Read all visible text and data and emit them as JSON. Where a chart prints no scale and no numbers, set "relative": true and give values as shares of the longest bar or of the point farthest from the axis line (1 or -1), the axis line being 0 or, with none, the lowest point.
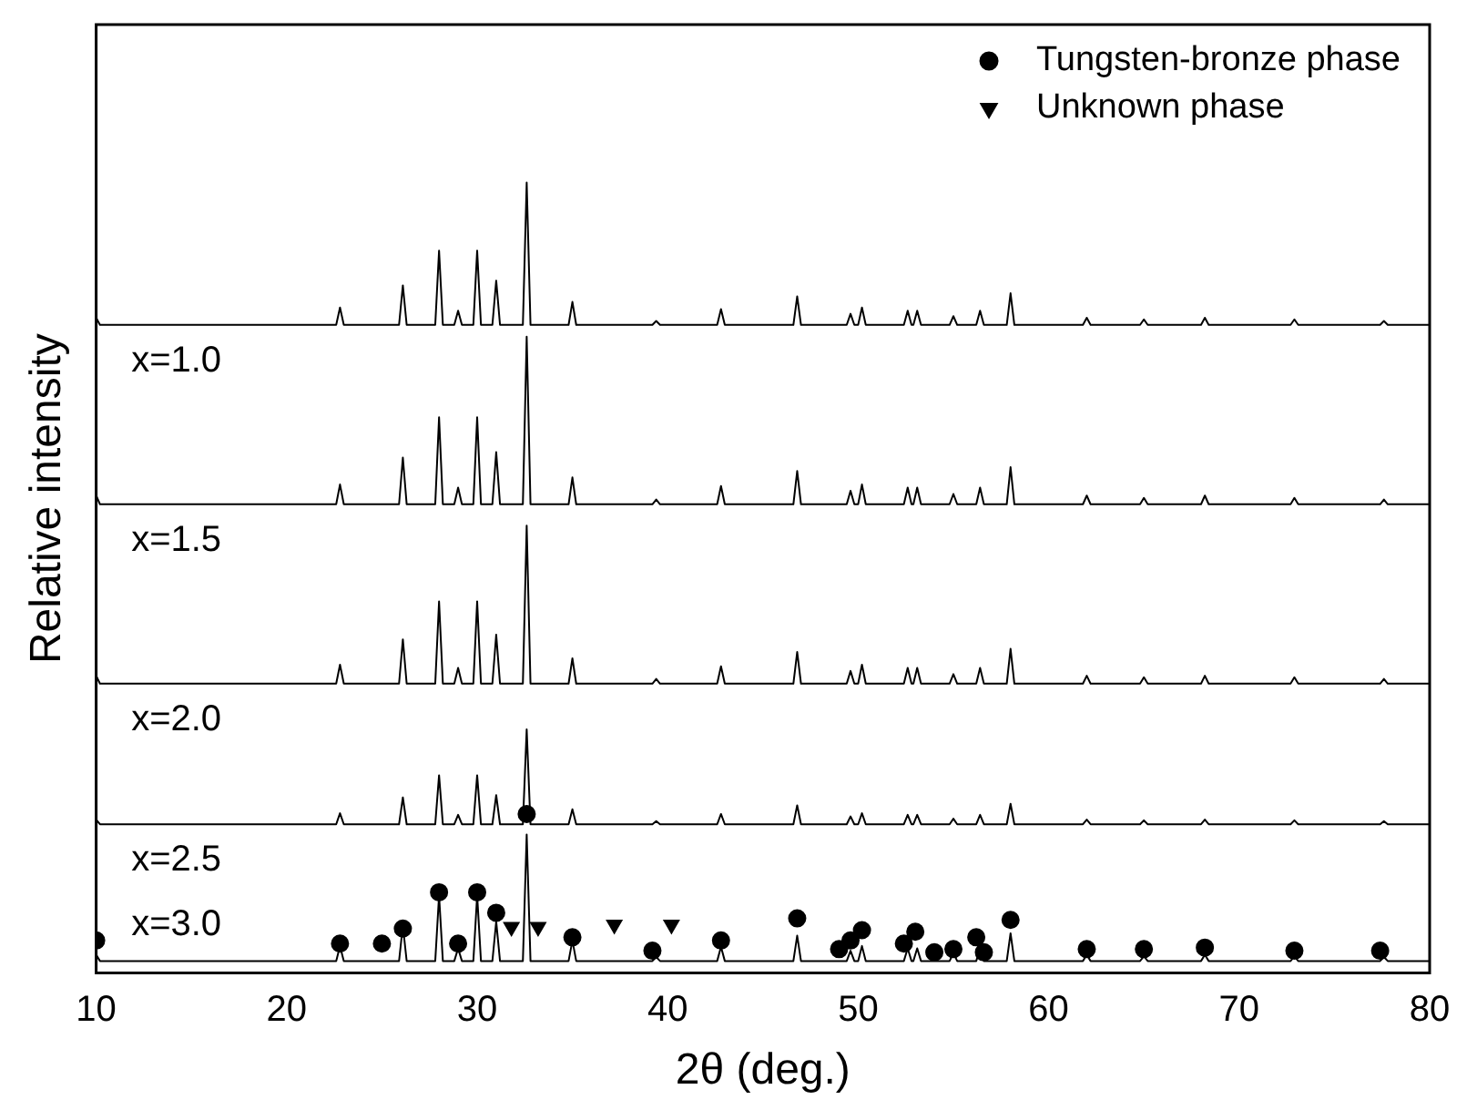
{
  "chart_data": {
    "type": "line",
    "relative": true,
    "xlabel": "2θ (deg.)",
    "ylabel": "Relative intensity",
    "xlim": [
      10,
      80
    ],
    "xticks": [
      10,
      20,
      30,
      40,
      50,
      60,
      70,
      80
    ],
    "grid": false,
    "legend": "top right",
    "marker": "none",
    "line_style": "solid",
    "x": [
      10,
      10.2,
      22.6,
      22.8,
      23.0,
      25.9,
      26.1,
      26.3,
      27.8,
      28.0,
      28.2,
      28.8,
      29.0,
      29.2,
      29.8,
      30.0,
      30.2,
      30.8,
      31.0,
      31.2,
      32.4,
      32.6,
      32.8,
      34.8,
      35.0,
      35.2,
      39.2,
      39.4,
      39.6,
      42.6,
      42.8,
      43.0,
      46.6,
      46.8,
      47.0,
      49.4,
      49.6,
      49.8,
      50.0,
      50.2,
      50.4,
      52.4,
      52.6,
      52.8,
      52.9,
      53.1,
      53.3,
      54.8,
      55.0,
      55.2,
      56.2,
      56.4,
      56.6,
      57.8,
      58.0,
      58.2,
      61.8,
      62.0,
      62.2,
      64.8,
      65.0,
      65.2,
      68.0,
      68.2,
      68.4,
      72.7,
      72.9,
      73.1,
      77.4,
      77.6,
      77.8,
      80
    ],
    "series": [
      {
        "name": "x=1.0",
        "color": "#000000",
        "values": [
          0.829,
          0.82,
          0.82,
          0.842,
          0.82,
          0.82,
          0.87,
          0.82,
          0.82,
          0.914,
          0.82,
          0.82,
          0.838,
          0.82,
          0.82,
          0.914,
          0.82,
          0.82,
          0.876,
          0.82,
          0.82,
          1.0,
          0.82,
          0.82,
          0.849,
          0.82,
          0.82,
          0.825,
          0.82,
          0.82,
          0.84,
          0.82,
          0.82,
          0.856,
          0.82,
          0.82,
          0.834,
          0.82,
          0.82,
          0.842,
          0.82,
          0.82,
          0.838,
          0.82,
          0.82,
          0.838,
          0.82,
          0.82,
          0.831,
          0.82,
          0.82,
          0.838,
          0.82,
          0.82,
          0.86,
          0.82,
          0.82,
          0.829,
          0.82,
          0.82,
          0.827,
          0.82,
          0.82,
          0.829,
          0.82,
          0.82,
          0.827,
          0.82,
          0.82,
          0.825,
          0.82,
          0.82
        ]
      },
      {
        "name": "x=1.5",
        "color": "#000000",
        "values": [
          0.604,
          0.593,
          0.593,
          0.618,
          0.593,
          0.593,
          0.652,
          0.593,
          0.593,
          0.703,
          0.593,
          0.593,
          0.614,
          0.593,
          0.593,
          0.703,
          0.593,
          0.593,
          0.659,
          0.593,
          0.593,
          0.805,
          0.593,
          0.593,
          0.627,
          0.593,
          0.593,
          0.599,
          0.593,
          0.593,
          0.616,
          0.593,
          0.593,
          0.635,
          0.593,
          0.593,
          0.61,
          0.593,
          0.593,
          0.618,
          0.593,
          0.593,
          0.614,
          0.593,
          0.593,
          0.614,
          0.593,
          0.593,
          0.606,
          0.593,
          0.593,
          0.614,
          0.593,
          0.593,
          0.64,
          0.593,
          0.593,
          0.604,
          0.593,
          0.593,
          0.601,
          0.593,
          0.593,
          0.604,
          0.593,
          0.593,
          0.601,
          0.593,
          0.593,
          0.599,
          0.593,
          0.593
        ]
      },
      {
        "name": "x=2.0",
        "color": "#000000",
        "values": [
          0.376,
          0.366,
          0.366,
          0.39,
          0.366,
          0.366,
          0.422,
          0.366,
          0.366,
          0.47,
          0.366,
          0.366,
          0.386,
          0.366,
          0.366,
          0.47,
          0.366,
          0.366,
          0.428,
          0.366,
          0.366,
          0.566,
          0.366,
          0.366,
          0.398,
          0.366,
          0.366,
          0.372,
          0.366,
          0.366,
          0.388,
          0.366,
          0.366,
          0.406,
          0.366,
          0.366,
          0.382,
          0.366,
          0.366,
          0.39,
          0.366,
          0.366,
          0.386,
          0.366,
          0.366,
          0.386,
          0.366,
          0.366,
          0.378,
          0.366,
          0.366,
          0.386,
          0.366,
          0.366,
          0.41,
          0.366,
          0.366,
          0.376,
          0.366,
          0.366,
          0.374,
          0.366,
          0.366,
          0.376,
          0.366,
          0.366,
          0.374,
          0.366,
          0.366,
          0.372,
          0.366,
          0.366
        ]
      },
      {
        "name": "x=2.5",
        "color": "#000000",
        "values": [
          0.194,
          0.188,
          0.188,
          0.202,
          0.188,
          0.188,
          0.222,
          0.188,
          0.188,
          0.25,
          0.188,
          0.188,
          0.2,
          0.188,
          0.188,
          0.25,
          0.188,
          0.188,
          0.225,
          0.188,
          0.188,
          0.308,
          0.188,
          0.188,
          0.207,
          0.188,
          0.188,
          0.192,
          0.188,
          0.188,
          0.201,
          0.188,
          0.188,
          0.212,
          0.188,
          0.188,
          0.198,
          0.188,
          0.188,
          0.202,
          0.188,
          0.188,
          0.2,
          0.188,
          0.188,
          0.2,
          0.188,
          0.188,
          0.195,
          0.188,
          0.188,
          0.2,
          0.188,
          0.188,
          0.214,
          0.188,
          0.188,
          0.194,
          0.188,
          0.188,
          0.193,
          0.188,
          0.188,
          0.194,
          0.188,
          0.188,
          0.193,
          0.188,
          0.188,
          0.192,
          0.188,
          0.188
        ]
      },
      {
        "name": "x=3.0",
        "color": "#000000",
        "values": [
          0.023,
          0.015,
          0.015,
          0.034,
          0.015,
          0.015,
          0.06,
          0.015,
          0.015,
          0.098,
          0.015,
          0.015,
          0.031,
          0.015,
          0.015,
          0.098,
          0.015,
          0.015,
          0.065,
          0.015,
          0.015,
          0.175,
          0.015,
          0.015,
          0.041,
          0.015,
          0.015,
          0.02,
          0.015,
          0.015,
          0.033,
          0.015,
          0.015,
          0.047,
          0.015,
          0.015,
          0.028,
          0.015,
          0.015,
          0.034,
          0.015,
          0.015,
          0.031,
          0.015,
          0.015,
          0.031,
          0.015,
          0.015,
          0.025,
          0.015,
          0.015,
          0.031,
          0.015,
          0.015,
          0.05,
          0.015,
          0.015,
          0.023,
          0.015,
          0.015,
          0.021,
          0.015,
          0.015,
          0.023,
          0.015,
          0.015,
          0.021,
          0.015,
          0.015,
          0.02,
          0.015,
          0.015
        ]
      },
      {
        "type": "scatter",
        "name": "Tungsten-bronze phase",
        "color": "#000000",
        "marker": "circle",
        "x": [
          10,
          22.8,
          25.0,
          26.1,
          28,
          29,
          30,
          31,
          32.6,
          35,
          39.2,
          42.8,
          46.8,
          49,
          49.6,
          50.2,
          52.4,
          53,
          54,
          55,
          56.2,
          56.6,
          58,
          62,
          65,
          68.2,
          72.9,
          77.4
        ],
        "values": [
          0.041,
          0.037,
          0.037,
          0.056,
          0.102,
          0.037,
          0.102,
          0.076,
          0.201,
          0.045,
          0.028,
          0.041,
          0.069,
          0.03,
          0.041,
          0.054,
          0.037,
          0.052,
          0.026,
          0.03,
          0.045,
          0.026,
          0.067,
          0.03,
          0.03,
          0.032,
          0.028,
          0.028
        ]
      },
      {
        "type": "scatter",
        "name": "Unknown phase",
        "color": "#000000",
        "marker": "triangle",
        "x": [
          31.8,
          33.2,
          37.2,
          40.2
        ],
        "values": [
          0.058,
          0.058,
          0.061,
          0.061
        ]
      }
    ]
  }
}
